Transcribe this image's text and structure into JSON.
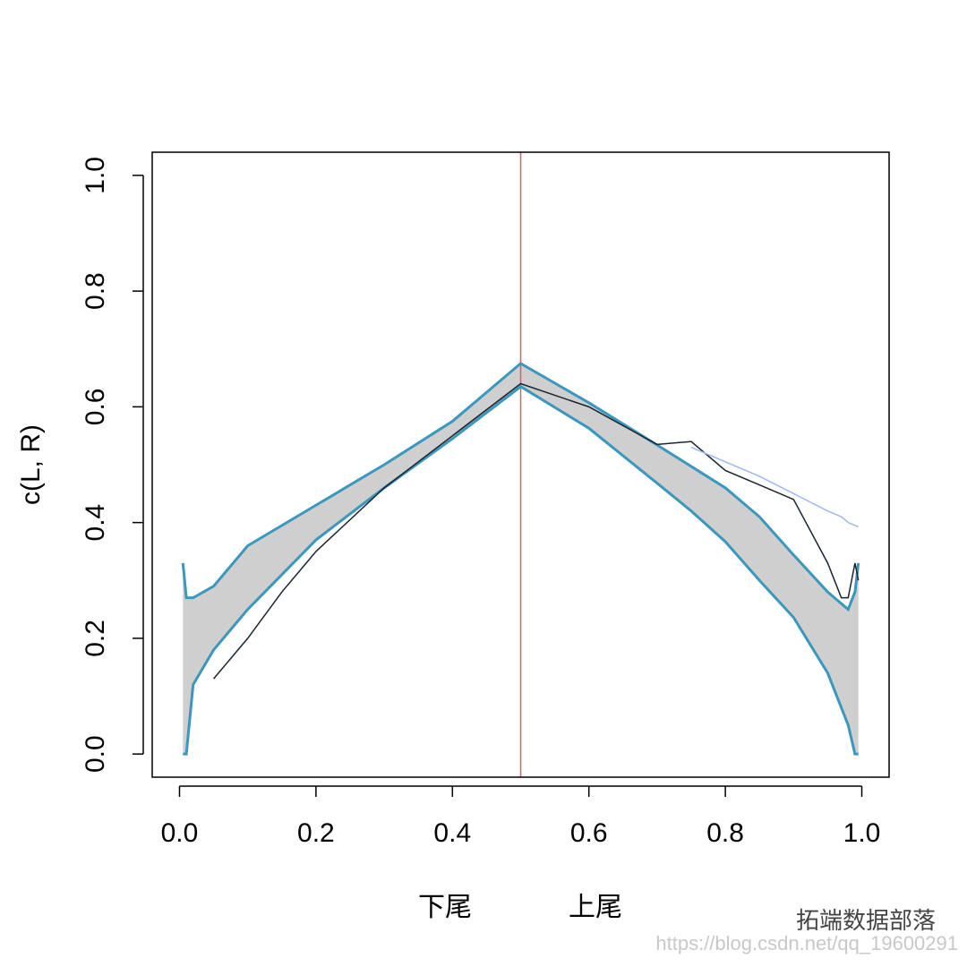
{
  "chart_data": {
    "type": "line",
    "y_label": "c(L, R)",
    "x_annotations": [
      "下尾",
      "上尾"
    ],
    "watermark": "拓端数据部落",
    "watermark_url": "https://blog.csdn.net/qq_19600291",
    "x": [
      0.005,
      0.01,
      0.02,
      0.05,
      0.1,
      0.15,
      0.2,
      0.3,
      0.4,
      0.5,
      0.6,
      0.7,
      0.75,
      0.8,
      0.85,
      0.9,
      0.95,
      0.97,
      0.98,
      0.99,
      0.995
    ],
    "series": [
      {
        "color": "#3a97bd",
        "values": [
          0.33,
          0.27,
          0.27,
          0.29,
          0.36,
          0.395,
          0.43,
          0.5,
          0.575,
          0.675,
          0.607,
          0.534,
          0.497,
          0.46,
          0.41,
          0.344,
          0.28,
          0.26,
          0.25,
          0.28,
          0.33
        ]
      },
      {
        "color": "#3a97bd",
        "values": [
          0,
          0,
          0.12,
          0.18,
          0.25,
          0.31,
          0.37,
          0.46,
          0.545,
          0.635,
          0.563,
          0.468,
          0.42,
          0.367,
          0.3,
          0.236,
          0.14,
          0.08,
          0.05,
          0,
          0
        ]
      },
      {
        "color": "#1a2430",
        "values": [
          null,
          null,
          null,
          0.13,
          0.2,
          0.28,
          0.35,
          0.46,
          0.55,
          0.64,
          0.6,
          0.535,
          0.54,
          0.49,
          0.465,
          0.44,
          0.33,
          0.27,
          0.27,
          0.33,
          0.3
        ]
      },
      {
        "color": "#9fb8f0",
        "values": [
          null,
          null,
          null,
          null,
          null,
          null,
          null,
          null,
          null,
          null,
          null,
          null,
          0.53,
          0.505,
          0.48,
          0.45,
          0.42,
          0.41,
          0.4,
          0.395,
          0.393
        ]
      }
    ],
    "band_color": "#cfcfcf",
    "vline": {
      "value": 0.5,
      "color": "#e05a70"
    },
    "xlim": [
      -0.04,
      1.04
    ],
    "ylim": [
      -0.04,
      1.04
    ],
    "xticks": [
      {
        "value": 0,
        "label": "0.0"
      },
      0.2,
      0.4,
      0.6,
      0.8,
      {
        "value": 1,
        "label": "1.0"
      }
    ],
    "yticks": [
      {
        "value": 0,
        "label": "0.0"
      },
      0.2,
      0.4,
      0.6,
      0.8,
      {
        "value": 1,
        "label": "1.0"
      }
    ]
  }
}
